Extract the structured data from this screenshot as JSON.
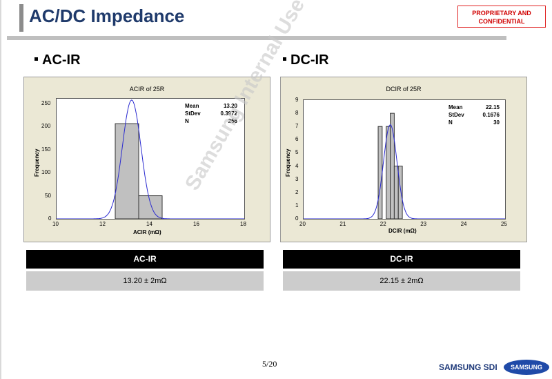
{
  "header": {
    "title": "AC/DC Impedance",
    "confidential_line1": "PROPRIETARY AND",
    "confidential_line2": "CONFIDENTIAL"
  },
  "sections": {
    "left_heading": "AC-IR",
    "right_heading": "DC-IR"
  },
  "watermark": "Samsung Internal Use Only",
  "chart_data": [
    {
      "type": "bar",
      "title": "ACIR of 25R",
      "xlabel": "ACIR (mΩ)",
      "ylabel": "Frequency",
      "xlim": [
        10,
        18
      ],
      "ylim": [
        0,
        260
      ],
      "xticks": [
        "10",
        "12",
        "14",
        "16",
        "18"
      ],
      "yticks": [
        "0",
        "50",
        "100",
        "150",
        "200",
        "250"
      ],
      "bins": [
        {
          "from": 12.5,
          "to": 13.5,
          "count": 206
        },
        {
          "from": 13.5,
          "to": 14.5,
          "count": 50
        }
      ],
      "fit": {
        "mean": 13.2,
        "stdev": 0.3972,
        "n": 256
      },
      "stats": [
        {
          "label": "Mean",
          "value": "13.20"
        },
        {
          "label": "StDev",
          "value": "0.3972"
        },
        {
          "label": "N",
          "value": "256"
        }
      ]
    },
    {
      "type": "bar",
      "title": "DCIR of 25R",
      "xlabel": "DCIR (mΩ)",
      "ylabel": "Frequency",
      "xlim": [
        20,
        25
      ],
      "ylim": [
        0,
        9
      ],
      "xticks": [
        "20",
        "21",
        "22",
        "23",
        "24",
        "25"
      ],
      "yticks": [
        "0",
        "1",
        "2",
        "3",
        "4",
        "5",
        "6",
        "7",
        "8",
        "9"
      ],
      "bins": [
        {
          "from": 21.85,
          "to": 21.95,
          "count": 7
        },
        {
          "from": 21.95,
          "to": 22.05,
          "count": 0
        },
        {
          "from": 22.05,
          "to": 22.15,
          "count": 7
        },
        {
          "from": 22.15,
          "to": 22.25,
          "count": 8
        },
        {
          "from": 22.25,
          "to": 22.35,
          "count": 4
        },
        {
          "from": 22.35,
          "to": 22.45,
          "count": 4
        }
      ],
      "fit": {
        "mean": 22.15,
        "stdev": 0.1676,
        "n": 30
      },
      "stats": [
        {
          "label": "Mean",
          "value": "22.15"
        },
        {
          "label": "StDev",
          "value": "0.1676"
        },
        {
          "label": "N",
          "value": "30"
        }
      ]
    }
  ],
  "table": {
    "left_header": "AC-IR",
    "left_value": "13.20 ± 2mΩ",
    "right_header": "DC-IR",
    "right_value": "22.15 ± 2mΩ"
  },
  "footer": {
    "page": "5/20",
    "brand": "SAMSUNG SDI",
    "logo_text": "SAMSUNG"
  },
  "colors": {
    "title": "#1f3a6b",
    "bar_fill": "#c0c0c0",
    "curve": "#2a2ad0",
    "chart_background": "#ebe8d5"
  }
}
